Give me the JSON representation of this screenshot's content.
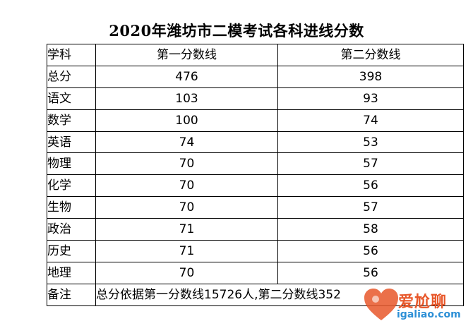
{
  "title": "2020年潍坊市二模考试各科进线分数",
  "table": {
    "headers": [
      "学科",
      "第一分数线",
      "第二分数线"
    ],
    "rows": [
      [
        "总分",
        "476",
        "398"
      ],
      [
        "语文",
        "103",
        "93"
      ],
      [
        "数学",
        "100",
        "74"
      ],
      [
        "英语",
        "74",
        "53"
      ],
      [
        "物理",
        "70",
        "57"
      ],
      [
        "化学",
        "70",
        "56"
      ],
      [
        "生物",
        "70",
        "57"
      ],
      [
        "政治",
        "71",
        "58"
      ],
      [
        "历史",
        "71",
        "56"
      ],
      [
        "地理",
        "70",
        "56"
      ]
    ],
    "note_label": "备注",
    "note_text": "总分依据第一分数线15726人,第二分数线352"
  },
  "watermark": {
    "brand": "爱尬聊",
    "domain": "igaliao.com",
    "colors": {
      "brand": "#e8572a",
      "domain": "#2c8fd6"
    }
  }
}
